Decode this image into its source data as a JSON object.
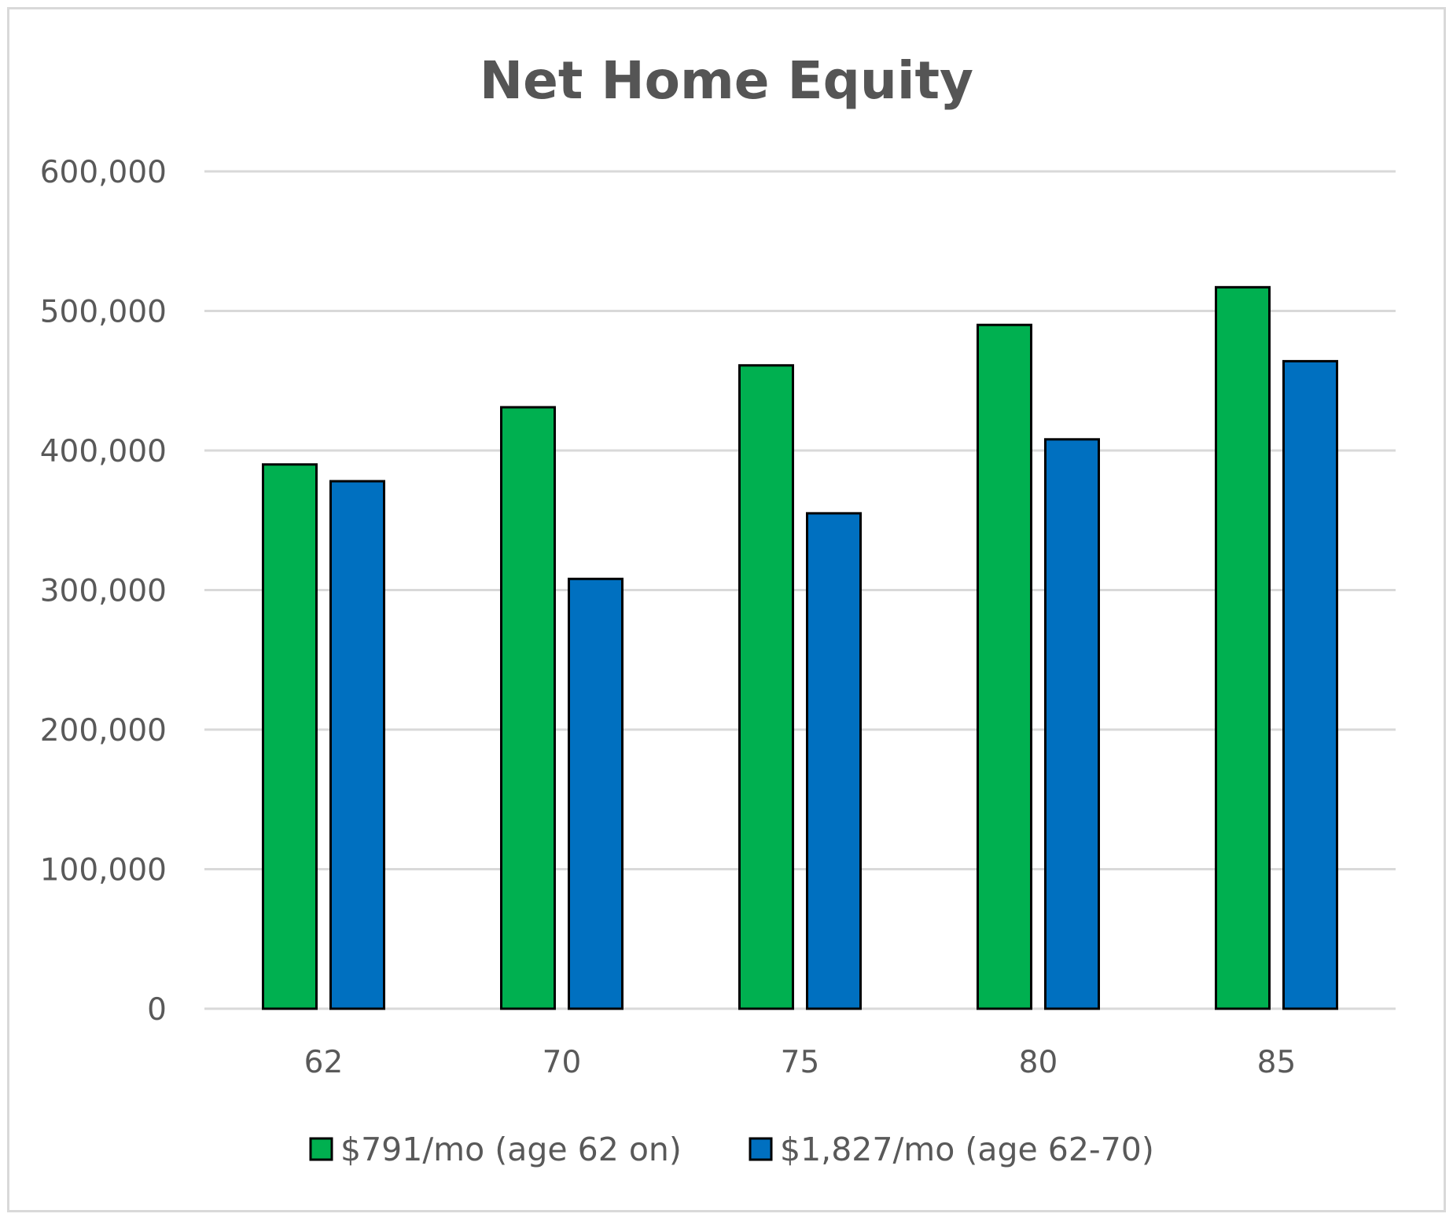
{
  "chart_data": {
    "type": "bar",
    "title": "Net Home Equity",
    "xlabel": "",
    "ylabel": "",
    "categories": [
      "62",
      "70",
      "75",
      "80",
      "85"
    ],
    "series": [
      {
        "name": "$791/mo (age 62 on)",
        "color": "#00b050",
        "values": [
          390000,
          431000,
          461000,
          490000,
          517000
        ]
      },
      {
        "name": "$1,827/mo (age 62-70)",
        "color": "#0070c0",
        "values": [
          378000,
          308000,
          355000,
          408000,
          464000
        ]
      }
    ],
    "ylim": [
      0,
      600000
    ],
    "yticks": [
      "0",
      "100,000",
      "200,000",
      "300,000",
      "400,000",
      "500,000",
      "600,000"
    ],
    "grid": true,
    "legend_position": "bottom"
  }
}
